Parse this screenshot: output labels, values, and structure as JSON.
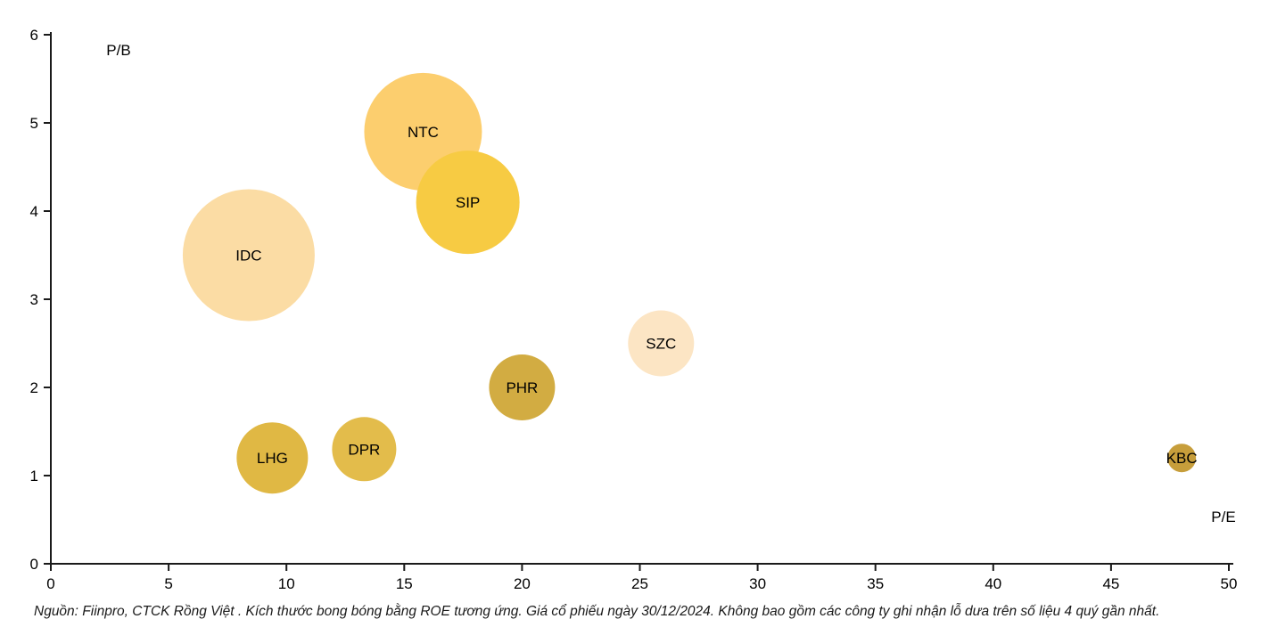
{
  "chart_data": {
    "type": "scatter",
    "subtype": "bubble",
    "title": "",
    "xlabel": "P/E",
    "ylabel": "P/B",
    "xlim": [
      0,
      50
    ],
    "ylim": [
      0,
      6
    ],
    "x_ticks": [
      0,
      5,
      10,
      15,
      20,
      25,
      30,
      35,
      40,
      45,
      50
    ],
    "y_ticks": [
      0,
      1,
      2,
      3,
      4,
      5,
      6
    ],
    "grid": false,
    "legend_position": "none",
    "bubble_size_meaning": "ROE",
    "points": [
      {
        "label": "IDC",
        "pe": 8.4,
        "pb": 3.5,
        "radius_px": 74,
        "color": "#FBDCA4"
      },
      {
        "label": "NTC",
        "pe": 15.8,
        "pb": 4.9,
        "radius_px": 66,
        "color": "#FCCE6E"
      },
      {
        "label": "SIP",
        "pe": 17.7,
        "pb": 4.1,
        "radius_px": 58,
        "color": "#F7CB43"
      },
      {
        "label": "SZC",
        "pe": 25.9,
        "pb": 2.5,
        "radius_px": 37,
        "color": "#FCE5C4"
      },
      {
        "label": "PHR",
        "pe": 20.0,
        "pb": 2.0,
        "radius_px": 37,
        "color": "#D2AC42"
      },
      {
        "label": "LHG",
        "pe": 9.4,
        "pb": 1.2,
        "radius_px": 40,
        "color": "#E0B844"
      },
      {
        "label": "DPR",
        "pe": 13.3,
        "pb": 1.3,
        "radius_px": 36,
        "color": "#E3BC4B"
      },
      {
        "label": "KBC",
        "pe": 48.0,
        "pb": 1.2,
        "radius_px": 16,
        "color": "#C79E3B"
      }
    ]
  },
  "footer": {
    "source_note": "Nguồn: Fiinpro, CTCK Rồng Việt . Kích thước bong bóng bằng ROE tương ứng. Giá cổ phiếu ngày 30/12/2024. Không bao gồm các công ty ghi nhận lỗ dưa trên số liệu 4 quý gần nhất."
  },
  "colors": {
    "axis": "#1a1a1a",
    "text": "#000000",
    "background": "#ffffff"
  }
}
